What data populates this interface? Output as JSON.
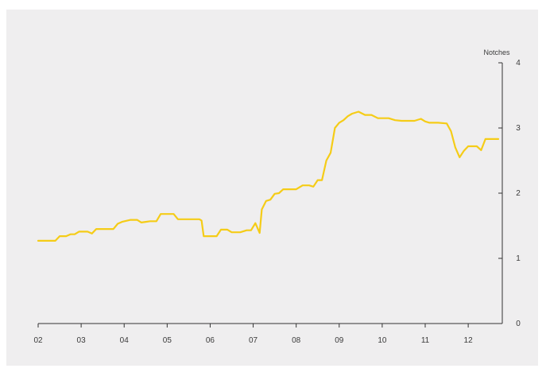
{
  "chart_data": {
    "type": "line",
    "title": "",
    "xlabel": "",
    "ylabel": "Notches",
    "y_axis_side": "right",
    "ylim": [
      0,
      4
    ],
    "yticks": [
      0,
      1,
      2,
      3,
      4
    ],
    "xlim": [
      2002.0,
      2012.7
    ],
    "xticks": [
      {
        "value": 2002,
        "label": "02"
      },
      {
        "value": 2003,
        "label": "03"
      },
      {
        "value": 2004,
        "label": "04"
      },
      {
        "value": 2005,
        "label": "05"
      },
      {
        "value": 2006,
        "label": "06"
      },
      {
        "value": 2007,
        "label": "07"
      },
      {
        "value": 2008,
        "label": "08"
      },
      {
        "value": 2009,
        "label": "09"
      },
      {
        "value": 2010,
        "label": "10"
      },
      {
        "value": 2011,
        "label": "11"
      },
      {
        "value": 2012,
        "label": "12"
      }
    ],
    "grid": false,
    "legend": "none",
    "line_color": "#f5cc17",
    "series": [
      {
        "x": [
          2002.0,
          2002.4,
          2002.5,
          2002.65,
          2002.75,
          2002.85,
          2002.95,
          2003.15,
          2003.25,
          2003.35,
          2003.5,
          2003.65,
          2003.75,
          2003.85,
          2003.95,
          2004.15,
          2004.3,
          2004.4,
          2004.5,
          2004.6,
          2004.75,
          2004.85,
          2005.0,
          2005.15,
          2005.25,
          2005.4,
          2005.65,
          2005.75,
          2005.8,
          2005.85,
          2006.1,
          2006.15,
          2006.25,
          2006.4,
          2006.5,
          2006.7,
          2006.85,
          2006.95,
          2007.05,
          2007.15,
          2007.2,
          2007.3,
          2007.4,
          2007.5,
          2007.6,
          2007.7,
          2007.8,
          2007.9,
          2008.0,
          2008.15,
          2008.3,
          2008.4,
          2008.5,
          2008.6,
          2008.7,
          2008.8,
          2008.9,
          2009.0,
          2009.1,
          2009.2,
          2009.3,
          2009.45,
          2009.6,
          2009.75,
          2009.9,
          2010.05,
          2010.15,
          2010.3,
          2010.45,
          2010.6,
          2010.75,
          2010.9,
          2011.0,
          2011.1,
          2011.3,
          2011.5,
          2011.6,
          2011.7,
          2011.8,
          2011.9,
          2012.0,
          2012.1,
          2012.2,
          2012.3,
          2012.4,
          2012.55,
          2012.7
        ],
        "y": [
          1.27,
          1.27,
          1.34,
          1.34,
          1.37,
          1.37,
          1.41,
          1.41,
          1.38,
          1.45,
          1.45,
          1.45,
          1.45,
          1.53,
          1.56,
          1.59,
          1.59,
          1.55,
          1.56,
          1.57,
          1.57,
          1.68,
          1.68,
          1.68,
          1.6,
          1.6,
          1.6,
          1.6,
          1.58,
          1.34,
          1.34,
          1.34,
          1.44,
          1.44,
          1.4,
          1.4,
          1.43,
          1.43,
          1.54,
          1.39,
          1.75,
          1.88,
          1.9,
          1.99,
          2.0,
          2.06,
          2.06,
          2.06,
          2.06,
          2.12,
          2.12,
          2.1,
          2.2,
          2.2,
          2.5,
          2.62,
          3.0,
          3.08,
          3.12,
          3.18,
          3.22,
          3.25,
          3.2,
          3.2,
          3.15,
          3.15,
          3.15,
          3.12,
          3.11,
          3.11,
          3.11,
          3.14,
          3.1,
          3.08,
          3.08,
          3.07,
          2.95,
          2.7,
          2.55,
          2.65,
          2.72,
          2.72,
          2.72,
          2.66,
          2.83,
          2.83,
          2.83
        ]
      }
    ]
  }
}
